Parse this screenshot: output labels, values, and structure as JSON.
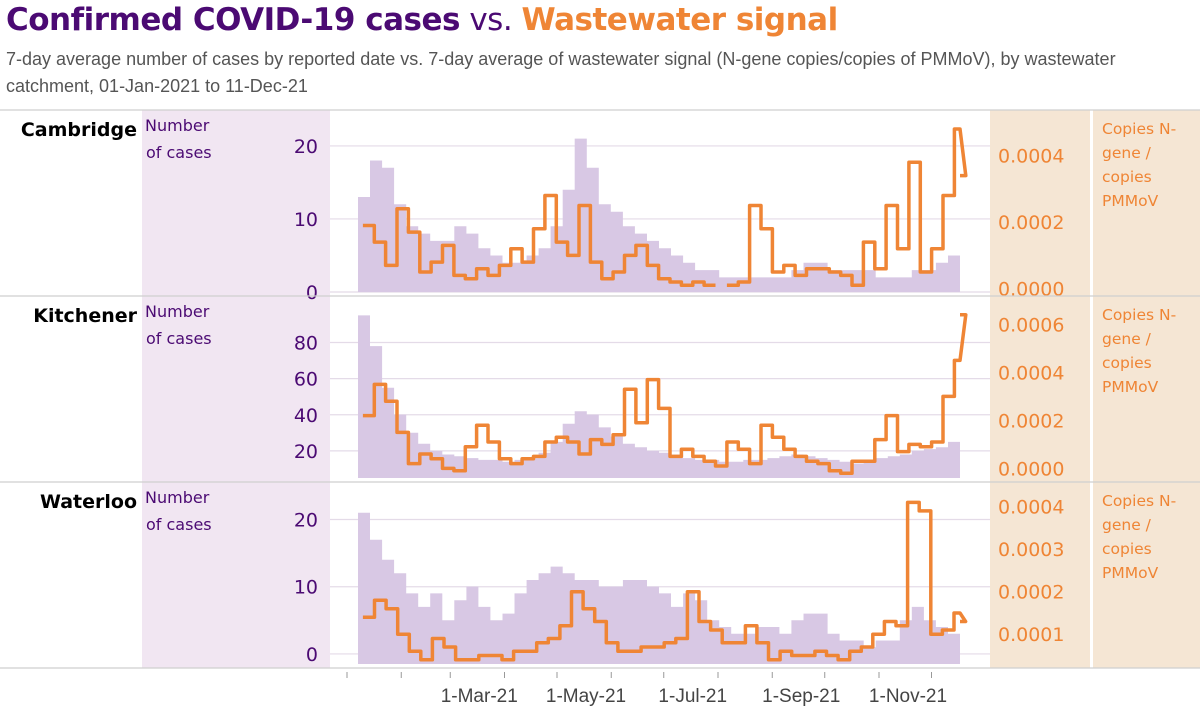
{
  "header": {
    "title_part1": "Confirmed COVID-19 cases",
    "title_part2": " vs. ",
    "title_part3": "Wastewater signal",
    "subtitle": "7-day average number of cases by reported date vs. 7-day average of wastewater signal (N-gene copies/copies of PMMoV), by wastewater catchment, 01-Jan-2021 to 11-Dec-21"
  },
  "colors": {
    "cases_title": "#4b0a73",
    "wastewater": "#ef8535",
    "cases_area": "#d8c8e4",
    "left_band": "#f1e6f2",
    "right_band": "#f5e6d4"
  },
  "chart_data": [
    {
      "type": "area+line",
      "panel": "Cambridge",
      "ylabel": "Number of cases",
      "y2label": "Copies N-gene / copies PMMoV",
      "yticks": [
        "0",
        "10",
        "20"
      ],
      "ylim": [
        0,
        23
      ],
      "y2ticks": [
        "0.0000",
        "0.0002",
        "0.0004"
      ],
      "y2lim": [
        -1e-05,
        0.000495
      ],
      "x_start": "2021-01-01",
      "x_end": "2021-12-11",
      "step_days": 7,
      "cases": [
        13,
        18,
        17,
        12,
        9,
        8,
        7,
        7,
        9,
        8,
        6,
        5,
        4,
        4,
        5,
        6,
        9,
        14,
        21,
        17,
        12,
        11,
        9,
        8,
        7,
        6,
        5,
        4,
        3,
        3,
        2,
        2,
        2,
        2,
        2,
        2,
        3,
        4,
        4,
        3,
        3,
        3,
        3,
        2,
        2,
        2,
        3,
        3,
        4,
        5
      ],
      "wastewater": [
        0.00019,
        0.00014,
        7e-05,
        0.00024,
        0.00017,
        5e-05,
        8e-05,
        0.00013,
        4e-05,
        3e-05,
        6e-05,
        4e-05,
        7e-05,
        0.00012,
        8e-05,
        0.00018,
        0.00028,
        0.00014,
        0.0001,
        0.00025,
        8e-05,
        3e-05,
        5e-05,
        0.0001,
        0.00013,
        7e-05,
        3e-05,
        2e-05,
        1e-05,
        2e-05,
        1e-05,
        null,
        1e-05,
        2e-05,
        0.00025,
        0.00018,
        5e-05,
        7e-05,
        4e-05,
        6e-05,
        6e-05,
        5e-05,
        4e-05,
        1e-05,
        0.00014,
        6e-05,
        0.00025,
        0.00012,
        0.00038,
        5e-05,
        0.00012,
        0.00028,
        0.00048,
        0.00034
      ]
    },
    {
      "type": "area+line",
      "panel": "Kitchener",
      "ylabel": "Number of cases",
      "y2label": "Copies N-gene / copies PMMoV",
      "yticks": [
        "20",
        "40",
        "60",
        "80"
      ],
      "ylim": [
        5,
        98
      ],
      "y2ticks": [
        "0.0000",
        "0.0002",
        "0.0004",
        "0.0006"
      ],
      "y2lim": [
        -4e-05,
        0.00066
      ],
      "x_start": "2021-01-01",
      "x_end": "2021-12-11",
      "step_days": 7,
      "cases": [
        95,
        78,
        55,
        40,
        30,
        24,
        20,
        18,
        17,
        16,
        15,
        15,
        14,
        15,
        16,
        19,
        25,
        35,
        42,
        40,
        33,
        28,
        24,
        22,
        20,
        19,
        18,
        16,
        15,
        15,
        14,
        14,
        15,
        15,
        16,
        17,
        18,
        17,
        16,
        15,
        14,
        13,
        14,
        16,
        17,
        18,
        20,
        21,
        22,
        25
      ],
      "wastewater": [
        0.00022,
        0.00035,
        0.00028,
        0.00015,
        2e-05,
        6e-05,
        4e-05,
        0.0,
        -1e-05,
        9e-05,
        0.00018,
        0.00011,
        4e-05,
        2e-05,
        4e-05,
        5e-05,
        0.00011,
        0.00013,
        0.00011,
        6e-05,
        0.00012,
        0.0001,
        0.00014,
        0.00033,
        0.00019,
        0.00037,
        0.00025,
        5e-05,
        8e-05,
        5e-05,
        3e-05,
        1e-05,
        0.00011,
        8e-05,
        2e-05,
        0.00018,
        0.00013,
        8e-05,
        5e-05,
        3e-05,
        2e-05,
        -1e-05,
        -2e-05,
        3e-05,
        3e-05,
        0.00012,
        0.00022,
        7e-05,
        0.0001,
        9e-05,
        0.00011,
        0.0003,
        0.00045,
        0.00064
      ]
    },
    {
      "type": "area+line",
      "panel": "Waterloo",
      "ylabel": "Number of cases",
      "y2label": "Copies N-gene / copies PMMoV",
      "yticks": [
        "0",
        "10",
        "20"
      ],
      "ylim": [
        -1.5,
        23.5
      ],
      "y2ticks": [
        "0.0001",
        "0.0002",
        "0.0003",
        "0.0004"
      ],
      "y2lim": [
        3e-05,
        0.000425
      ],
      "x_start": "2021-01-01",
      "x_end": "2021-12-11",
      "step_days": 7,
      "cases": [
        21,
        17,
        14,
        12,
        9,
        7,
        9,
        5,
        8,
        10,
        7,
        5,
        6,
        9,
        11,
        12,
        13,
        12,
        11,
        11,
        10,
        10,
        11,
        11,
        10,
        9,
        7,
        9,
        8,
        5,
        4,
        3,
        3,
        4,
        4,
        3,
        5,
        6,
        6,
        3,
        2,
        2,
        1,
        2,
        2,
        5,
        7,
        5,
        4,
        3
      ],
      "wastewater": [
        0.00014,
        0.00018,
        0.00016,
        0.0001,
        6e-05,
        4e-05,
        9e-05,
        7e-05,
        4e-05,
        4e-05,
        5e-05,
        5e-05,
        4e-05,
        6e-05,
        6e-05,
        8e-05,
        9e-05,
        0.00012,
        0.0002,
        0.00016,
        0.00013,
        8e-05,
        6e-05,
        6e-05,
        7e-05,
        7e-05,
        8e-05,
        9e-05,
        0.0002,
        0.00013,
        0.00011,
        8e-05,
        8e-05,
        0.00012,
        8e-05,
        4e-05,
        6e-05,
        5e-05,
        5e-05,
        6e-05,
        5e-05,
        4e-05,
        6e-05,
        7e-05,
        0.0001,
        0.00013,
        0.00012,
        0.00041,
        0.00039,
        0.0001,
        0.00011,
        0.00015,
        0.00013
      ]
    }
  ],
  "x_axis": {
    "ticks": [
      "2021-01-01",
      "2021-02-01",
      "2021-03-01",
      "2021-04-01",
      "2021-05-01",
      "2021-06-01",
      "2021-07-01",
      "2021-08-01",
      "2021-09-01",
      "2021-10-01",
      "2021-11-01",
      "2021-12-01"
    ],
    "labels": [
      {
        "date": "2021-03-01",
        "text": "1-Mar-21"
      },
      {
        "date": "2021-05-01",
        "text": "1-May-21"
      },
      {
        "date": "2021-07-01",
        "text": "1-Jul-21"
      },
      {
        "date": "2021-09-01",
        "text": "1-Sep-21"
      },
      {
        "date": "2021-11-01",
        "text": "1-Nov-21"
      }
    ]
  }
}
